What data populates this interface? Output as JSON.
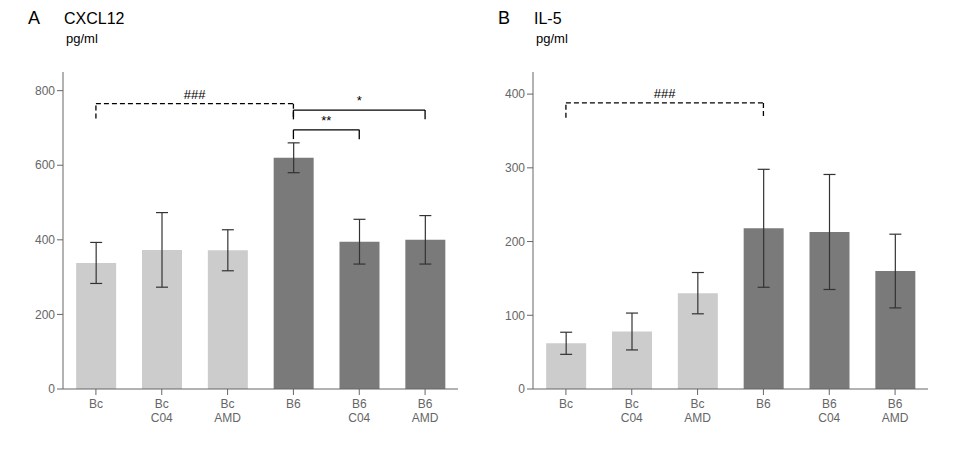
{
  "chart_data": [
    {
      "type": "bar",
      "panel_label": "A",
      "title": "CXCL12",
      "y_label": "pg/ml",
      "categories": [
        "Bc",
        "Bc\nC04",
        "Bc\nAMD",
        "B6",
        "B6\nC04",
        "B6\nAMD"
      ],
      "values": [
        338,
        373,
        372,
        620,
        395,
        400
      ],
      "errors": [
        55,
        100,
        55,
        40,
        60,
        65
      ],
      "colors": [
        "#cccccc",
        "#cccccc",
        "#cccccc",
        "#7a7a7a",
        "#7a7a7a",
        "#7a7a7a"
      ],
      "ylim": [
        0,
        850
      ],
      "yticks": [
        0,
        200,
        400,
        600,
        800
      ],
      "grid": false,
      "annotations": [
        {
          "label": "###",
          "from": "Bc",
          "to": "B6",
          "y": 765,
          "drop": 40,
          "line_style": "dashed"
        },
        {
          "label": "**",
          "from": "B6",
          "to": "B6\nC04",
          "y": 695,
          "drop": 25,
          "line_style": "solid"
        },
        {
          "label": "*",
          "from": "B6",
          "to": "B6\nAMD",
          "y": 748,
          "drop": 25,
          "line_style": "solid"
        }
      ]
    },
    {
      "type": "bar",
      "panel_label": "B",
      "title": "IL-5",
      "y_label": "pg/ml",
      "categories": [
        "Bc",
        "Bc\nC04",
        "Bc\nAMD",
        "B6",
        "B6\nC04",
        "B6\nAMD"
      ],
      "values": [
        62,
        78,
        130,
        218,
        213,
        160
      ],
      "errors": [
        15,
        25,
        28,
        80,
        78,
        50
      ],
      "colors": [
        "#cccccc",
        "#cccccc",
        "#cccccc",
        "#7a7a7a",
        "#7a7a7a",
        "#7a7a7a"
      ],
      "ylim": [
        0,
        430
      ],
      "yticks": [
        0,
        100,
        200,
        300,
        400
      ],
      "grid": false,
      "annotations": [
        {
          "label": "###",
          "from": "Bc",
          "to": "B6",
          "y": 388,
          "drop": 20,
          "line_style": "dashed"
        }
      ]
    }
  ]
}
